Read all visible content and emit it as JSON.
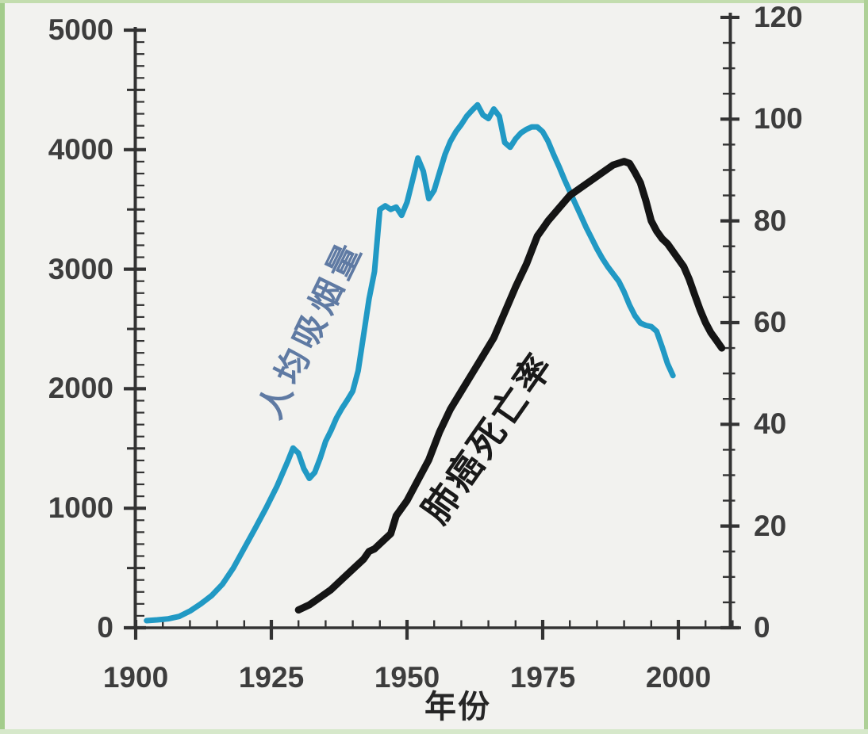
{
  "figure": {
    "background_color": "#f2f2ef",
    "border_color": "#a3cc8b",
    "axis_color": "#333333",
    "tick_label_color": "#3d3d3d"
  },
  "chart_data": {
    "type": "line",
    "title": "",
    "xlabel": "年份",
    "grid": false,
    "legend_position": "inline-rotated-labels",
    "x_axis": {
      "min": 1900,
      "max": 2010,
      "major_step": 25,
      "minor_step": 5,
      "tick_values": [
        1900,
        1925,
        1950,
        1975,
        2000
      ],
      "tick_labels": [
        "1900",
        "1925",
        "1950",
        "1975",
        "2000"
      ]
    },
    "left_axis": {
      "min": 0,
      "max": 5000,
      "major_step": 1000,
      "medium_step": 500,
      "minor_step": 100,
      "tick_values": [
        5000,
        4000,
        3000,
        2000,
        1000,
        0
      ],
      "tick_labels": [
        "5000",
        "4000",
        "3000",
        "2000",
        "1000",
        "0"
      ]
    },
    "right_axis": {
      "min": 0,
      "max": 120,
      "major_step": 20,
      "minor_step": 5,
      "tick_values": [
        120,
        100,
        80,
        60,
        40,
        20,
        0
      ],
      "tick_labels": [
        "120",
        "100",
        "80",
        "60",
        "40",
        "20",
        "0"
      ]
    },
    "series": [
      {
        "name": "人均吸烟量",
        "axis": "left",
        "color": "#2199c4",
        "label_color": "#5f7aa3",
        "stroke_width": 7,
        "points": [
          [
            1902,
            60
          ],
          [
            1904,
            66
          ],
          [
            1906,
            75
          ],
          [
            1908,
            95
          ],
          [
            1910,
            140
          ],
          [
            1912,
            200
          ],
          [
            1914,
            270
          ],
          [
            1916,
            365
          ],
          [
            1918,
            500
          ],
          [
            1920,
            665
          ],
          [
            1922,
            830
          ],
          [
            1924,
            1000
          ],
          [
            1926,
            1180
          ],
          [
            1928,
            1390
          ],
          [
            1929,
            1504
          ],
          [
            1930,
            1460
          ],
          [
            1931,
            1330
          ],
          [
            1932,
            1250
          ],
          [
            1933,
            1300
          ],
          [
            1934,
            1420
          ],
          [
            1935,
            1560
          ],
          [
            1936,
            1650
          ],
          [
            1937,
            1755
          ],
          [
            1938,
            1835
          ],
          [
            1939,
            1905
          ],
          [
            1940,
            1980
          ],
          [
            1941,
            2150
          ],
          [
            1942,
            2450
          ],
          [
            1943,
            2750
          ],
          [
            1944,
            2980
          ],
          [
            1945,
            3500
          ],
          [
            1946,
            3530
          ],
          [
            1947,
            3500
          ],
          [
            1948,
            3520
          ],
          [
            1949,
            3450
          ],
          [
            1950,
            3560
          ],
          [
            1951,
            3740
          ],
          [
            1952,
            3930
          ],
          [
            1953,
            3820
          ],
          [
            1954,
            3590
          ],
          [
            1955,
            3660
          ],
          [
            1956,
            3810
          ],
          [
            1957,
            3960
          ],
          [
            1958,
            4070
          ],
          [
            1959,
            4150
          ],
          [
            1960,
            4210
          ],
          [
            1961,
            4280
          ],
          [
            1962,
            4330
          ],
          [
            1963,
            4375
          ],
          [
            1964,
            4290
          ],
          [
            1965,
            4260
          ],
          [
            1966,
            4340
          ],
          [
            1967,
            4280
          ],
          [
            1968,
            4060
          ],
          [
            1969,
            4020
          ],
          [
            1970,
            4090
          ],
          [
            1971,
            4140
          ],
          [
            1972,
            4170
          ],
          [
            1973,
            4190
          ],
          [
            1974,
            4190
          ],
          [
            1975,
            4150
          ],
          [
            1976,
            4070
          ],
          [
            1977,
            3960
          ],
          [
            1978,
            3860
          ],
          [
            1979,
            3750
          ],
          [
            1980,
            3650
          ],
          [
            1981,
            3550
          ],
          [
            1982,
            3450
          ],
          [
            1983,
            3350
          ],
          [
            1984,
            3260
          ],
          [
            1985,
            3170
          ],
          [
            1986,
            3090
          ],
          [
            1987,
            3020
          ],
          [
            1988,
            2960
          ],
          [
            1989,
            2900
          ],
          [
            1990,
            2810
          ],
          [
            1991,
            2700
          ],
          [
            1992,
            2610
          ],
          [
            1993,
            2550
          ],
          [
            1994,
            2530
          ],
          [
            1995,
            2520
          ],
          [
            1996,
            2480
          ],
          [
            1997,
            2350
          ],
          [
            1998,
            2210
          ],
          [
            1999,
            2110
          ]
        ]
      },
      {
        "name": "肺癌死亡率",
        "axis": "right",
        "color": "#151515",
        "label_color": "#191919",
        "stroke_width": 9,
        "points": [
          [
            1930,
            3.5
          ],
          [
            1932,
            4.5
          ],
          [
            1934,
            6
          ],
          [
            1936,
            7.5
          ],
          [
            1938,
            9.5
          ],
          [
            1940,
            11.5
          ],
          [
            1942,
            13.5
          ],
          [
            1943,
            15
          ],
          [
            1944,
            15.5
          ],
          [
            1946,
            17.5
          ],
          [
            1947,
            18.5
          ],
          [
            1948,
            22
          ],
          [
            1950,
            25
          ],
          [
            1952,
            29
          ],
          [
            1954,
            33
          ],
          [
            1956,
            38.5
          ],
          [
            1958,
            43
          ],
          [
            1960,
            46.5
          ],
          [
            1962,
            50
          ],
          [
            1964,
            53.5
          ],
          [
            1966,
            57
          ],
          [
            1968,
            62
          ],
          [
            1970,
            67
          ],
          [
            1972,
            71.5
          ],
          [
            1974,
            77
          ],
          [
            1975,
            78.5
          ],
          [
            1976,
            80
          ],
          [
            1978,
            82.5
          ],
          [
            1980,
            85
          ],
          [
            1982,
            86.5
          ],
          [
            1984,
            88
          ],
          [
            1986,
            89.5
          ],
          [
            1988,
            91
          ],
          [
            1990,
            91.7
          ],
          [
            1991,
            91.3
          ],
          [
            1992,
            89.5
          ],
          [
            1993,
            87.5
          ],
          [
            1994,
            84
          ],
          [
            1995,
            80
          ],
          [
            1996,
            78
          ],
          [
            1997,
            76.5
          ],
          [
            1998,
            75.5
          ],
          [
            2000,
            72.5
          ],
          [
            2001,
            71
          ],
          [
            2002,
            68.5
          ],
          [
            2003,
            65.5
          ],
          [
            2004,
            62.5
          ],
          [
            2005,
            60
          ],
          [
            2006,
            58
          ],
          [
            2007,
            56.5
          ],
          [
            2008,
            55
          ]
        ]
      }
    ]
  }
}
